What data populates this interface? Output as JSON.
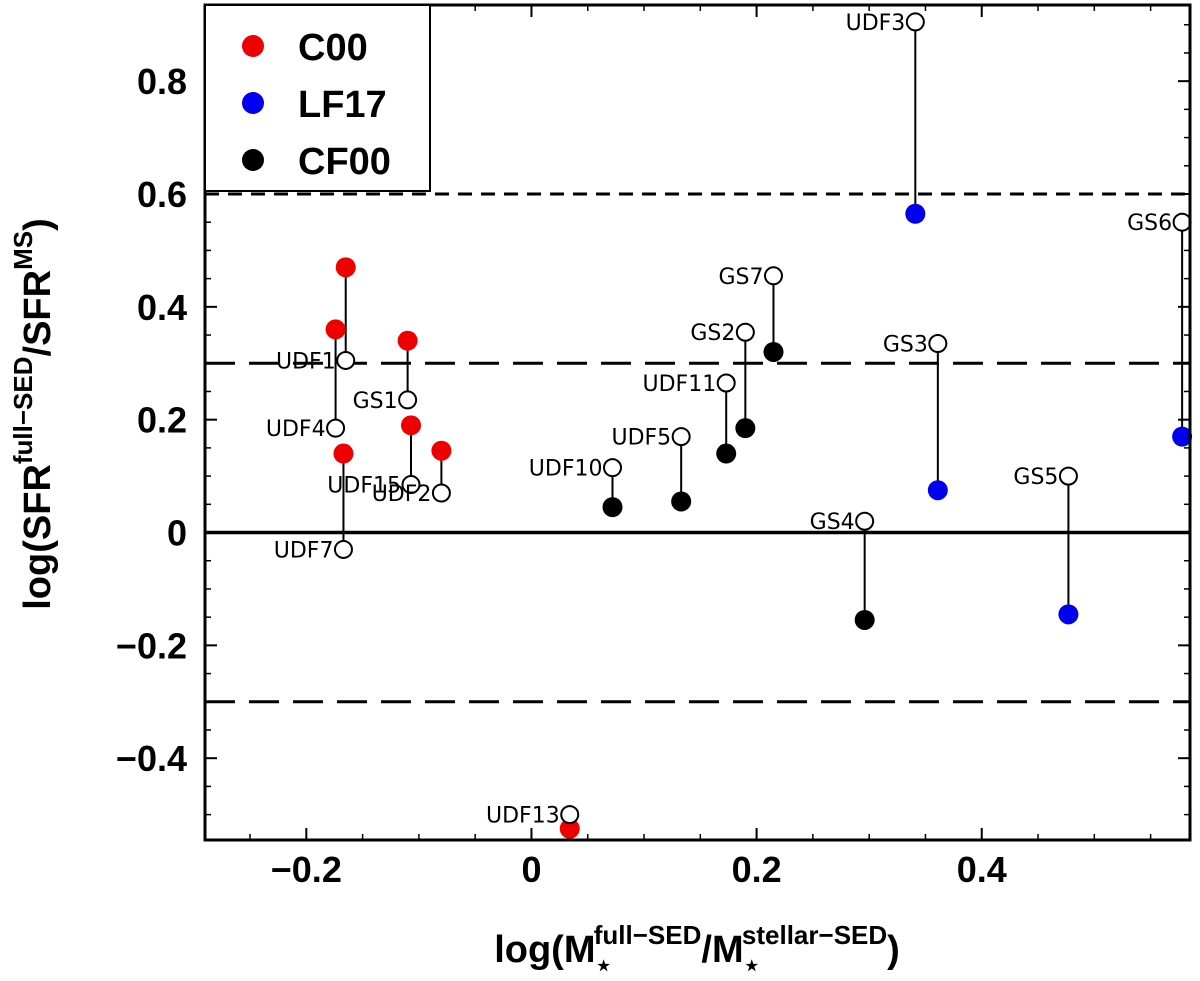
{
  "chart_data": {
    "type": "scatter",
    "xlabel": {
      "prefix": "log(M",
      "sub_star": "⋆",
      "sup1": "full−SED",
      "mid": "/M",
      "sup2": "stellar−SED",
      "suffix": ")"
    },
    "ylabel": {
      "prefix": "log(SFR",
      "sup1": "full−SED",
      "mid": "/SFR",
      "sup2": "MS",
      "suffix": ")"
    },
    "xlim": [
      -0.29,
      0.585
    ],
    "ylim": [
      -0.545,
      0.935
    ],
    "xticks": [
      -0.2,
      0,
      0.2,
      0.4
    ],
    "xtick_labels": [
      "−0.2",
      "0",
      "0.2",
      "0.4"
    ],
    "yticks": [
      -0.4,
      -0.2,
      0,
      0.2,
      0.4,
      0.6,
      0.8
    ],
    "ytick_labels": [
      "−0.4",
      "−0.2",
      "0",
      "0.2",
      "0.4",
      "0.6",
      "0.8"
    ],
    "legend": {
      "position": "top-left",
      "entries": [
        {
          "label": "C00",
          "color": "#ee0000"
        },
        {
          "label": "LF17",
          "color": "#0000ee"
        },
        {
          "label": "CF00",
          "color": "#000000"
        }
      ]
    },
    "reference_lines": [
      {
        "y": 0,
        "style": "solid"
      },
      {
        "y": 0.6,
        "style": "short-dash"
      },
      {
        "y": 0.3,
        "style": "long-dash"
      },
      {
        "y": -0.3,
        "style": "long-dash"
      }
    ],
    "points": [
      {
        "name": "UDF1",
        "x": -0.165,
        "y_open": 0.305,
        "y_filled": 0.47,
        "model": "C00"
      },
      {
        "name": "UDF4",
        "x": -0.174,
        "y_open": 0.185,
        "y_filled": 0.36,
        "model": "C00"
      },
      {
        "name": "UDF7",
        "x": -0.167,
        "y_open": -0.03,
        "y_filled": 0.14,
        "model": "C00"
      },
      {
        "name": "GS1",
        "x": -0.11,
        "y_open": 0.235,
        "y_filled": 0.34,
        "model": "C00"
      },
      {
        "name": "UDF15",
        "x": -0.107,
        "y_open": 0.085,
        "y_filled": 0.19,
        "model": "C00"
      },
      {
        "name": "UDF2",
        "x": -0.08,
        "y_open": 0.07,
        "y_filled": 0.145,
        "model": "C00"
      },
      {
        "name": "UDF13",
        "x": 0.034,
        "y_open": -0.5,
        "y_filled": -0.525,
        "model": "C00"
      },
      {
        "name": "UDF10",
        "x": 0.072,
        "y_open": 0.115,
        "y_filled": 0.045,
        "model": "CF00"
      },
      {
        "name": "UDF5",
        "x": 0.133,
        "y_open": 0.17,
        "y_filled": 0.055,
        "model": "CF00"
      },
      {
        "name": "UDF11",
        "x": 0.173,
        "y_open": 0.265,
        "y_filled": 0.14,
        "model": "CF00"
      },
      {
        "name": "GS2",
        "x": 0.19,
        "y_open": 0.355,
        "y_filled": 0.185,
        "model": "CF00"
      },
      {
        "name": "GS7",
        "x": 0.215,
        "y_open": 0.455,
        "y_filled": 0.32,
        "model": "CF00"
      },
      {
        "name": "GS4",
        "x": 0.296,
        "y_open": 0.02,
        "y_filled": -0.155,
        "model": "CF00"
      },
      {
        "name": "UDF3",
        "x": 0.341,
        "y_open": 0.905,
        "y_filled": 0.565,
        "model": "LF17"
      },
      {
        "name": "GS3",
        "x": 0.361,
        "y_open": 0.335,
        "y_filled": 0.075,
        "model": "LF17"
      },
      {
        "name": "GS5",
        "x": 0.477,
        "y_open": 0.1,
        "y_filled": -0.145,
        "model": "LF17"
      },
      {
        "name": "GS6",
        "x": 0.578,
        "y_open": 0.55,
        "y_filled": 0.17,
        "model": "LF17"
      }
    ]
  }
}
